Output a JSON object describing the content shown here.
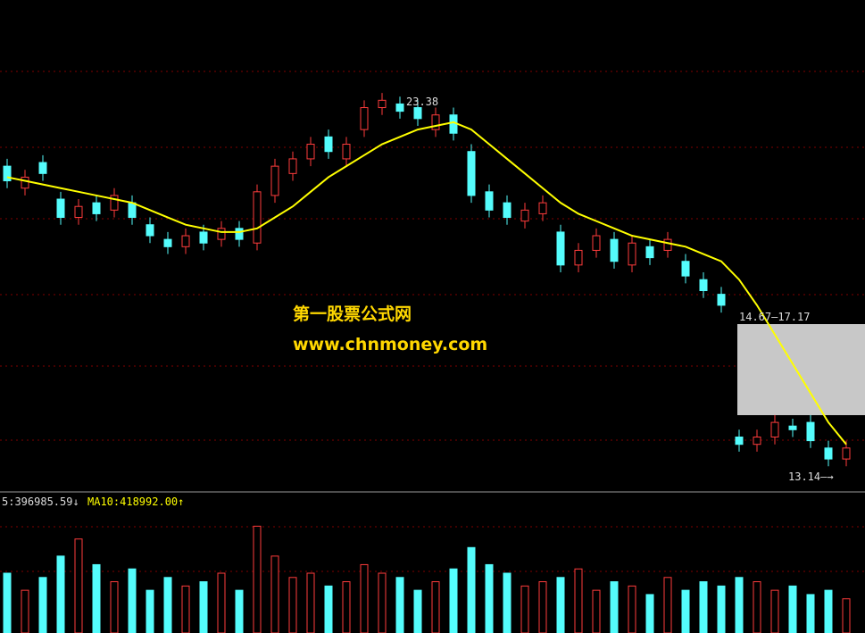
{
  "chart_data": {
    "type": "candlestick",
    "up_color": "#ff3c3c",
    "down_color": "#54fcfc",
    "open": [
      21.6,
      21.0,
      21.7,
      20.7,
      20.2,
      20.6,
      20.4,
      20.6,
      20.0,
      19.6,
      19.4,
      19.8,
      19.6,
      19.9,
      19.5,
      20.8,
      21.4,
      21.8,
      22.4,
      21.8,
      22.6,
      23.2,
      23.3,
      23.2,
      22.6,
      23.0,
      22.0,
      20.9,
      20.6,
      20.1,
      20.3,
      19.8,
      18.9,
      19.3,
      19.6,
      18.9,
      19.4,
      19.3,
      19.0,
      18.5,
      18.1,
      14.2,
      14.0,
      14.2,
      14.5,
      14.6,
      13.9,
      13.6
    ],
    "close": [
      21.2,
      21.3,
      21.4,
      20.2,
      20.5,
      20.3,
      20.8,
      20.2,
      19.7,
      19.4,
      19.7,
      19.5,
      19.9,
      19.6,
      20.9,
      21.6,
      21.8,
      22.2,
      22.0,
      22.2,
      23.2,
      23.4,
      23.1,
      22.9,
      23.0,
      22.5,
      20.8,
      20.4,
      20.2,
      20.4,
      20.6,
      18.9,
      19.3,
      19.7,
      19.0,
      19.5,
      19.1,
      19.6,
      18.6,
      18.2,
      17.8,
      14.0,
      14.2,
      14.6,
      14.4,
      14.1,
      13.6,
      13.9
    ],
    "high": [
      21.8,
      21.5,
      21.9,
      20.9,
      20.7,
      20.8,
      21.0,
      20.8,
      20.2,
      19.8,
      19.9,
      20.0,
      20.1,
      20.1,
      21.1,
      21.8,
      22.0,
      22.4,
      22.6,
      22.4,
      23.4,
      23.6,
      23.5,
      23.4,
      23.2,
      23.2,
      22.2,
      21.1,
      20.8,
      20.6,
      20.8,
      20.0,
      19.5,
      19.9,
      19.8,
      19.7,
      19.6,
      19.8,
      19.2,
      18.7,
      18.3,
      14.4,
      14.4,
      14.8,
      14.7,
      14.8,
      14.1,
      14.1
    ],
    "low": [
      21.0,
      20.8,
      21.2,
      20.0,
      20.0,
      20.1,
      20.2,
      20.0,
      19.5,
      19.2,
      19.2,
      19.3,
      19.4,
      19.4,
      19.3,
      20.6,
      21.2,
      21.6,
      21.8,
      21.6,
      22.4,
      23.0,
      22.9,
      22.7,
      22.4,
      22.3,
      20.6,
      20.2,
      20.0,
      19.9,
      20.1,
      18.7,
      18.7,
      19.1,
      18.8,
      18.7,
      18.9,
      19.1,
      18.4,
      18.0,
      17.6,
      13.8,
      13.8,
      14.0,
      14.2,
      13.9,
      13.4,
      13.4
    ],
    "ylim": [
      12.7,
      26.14
    ],
    "ma": {
      "color": "#ffff00",
      "values": [
        21.3,
        21.2,
        21.1,
        21.0,
        20.9,
        20.8,
        20.7,
        20.6,
        20.4,
        20.2,
        20.0,
        19.9,
        19.8,
        19.8,
        19.9,
        20.2,
        20.5,
        20.9,
        21.3,
        21.6,
        21.9,
        22.2,
        22.4,
        22.6,
        22.7,
        22.8,
        22.6,
        22.2,
        21.8,
        21.4,
        21.0,
        20.6,
        20.3,
        20.1,
        19.9,
        19.7,
        19.6,
        19.5,
        19.4,
        19.2,
        19.0,
        18.5,
        17.8,
        17.0,
        16.2,
        15.4,
        14.6,
        14.0
      ]
    },
    "volume": {
      "ylim": [
        0,
        1400000
      ],
      "values": [
        700000,
        500000,
        650000,
        900000,
        1100000,
        800000,
        600000,
        750000,
        500000,
        650000,
        550000,
        600000,
        700000,
        500000,
        1250000,
        900000,
        650000,
        700000,
        550000,
        600000,
        800000,
        700000,
        650000,
        500000,
        600000,
        750000,
        1000000,
        800000,
        700000,
        550000,
        600000,
        650000,
        750000,
        500000,
        600000,
        550000,
        450000,
        650000,
        500000,
        600000,
        550000,
        650000,
        600000,
        500000,
        550000,
        450000,
        500000,
        400000
      ]
    },
    "annotations": {
      "high_label": "23.38",
      "range_label": "14.67—17.17",
      "low_label": "13.14—→"
    },
    "watermark": [
      "第一股票公式网",
      "www.chnmoney.com"
    ],
    "volume_legend": [
      "5:396985.59↓",
      "MA10:418992.00↑"
    ]
  }
}
